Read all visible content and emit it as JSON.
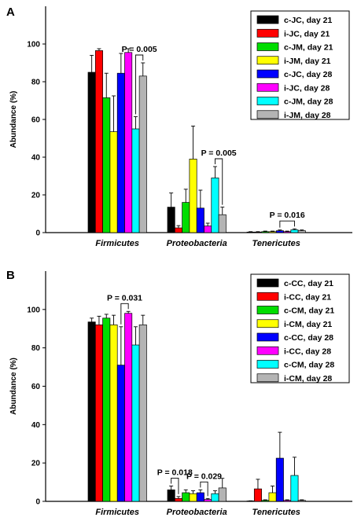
{
  "chart_data": [
    {
      "type": "bar",
      "panel_label": "A",
      "ylabel": "Abundance (%)",
      "ylim": [
        0,
        120
      ],
      "yticks": [
        0,
        20,
        40,
        60,
        80,
        100
      ],
      "categories": [
        "Firmicutes",
        "Proteobacteria",
        "Tenericutes"
      ],
      "legend_position": "top-right",
      "series": [
        {
          "name": "c-JC, day 21",
          "color": "#000000",
          "values": [
            85,
            13.5,
            0.3
          ],
          "errors": [
            9,
            7.5,
            0.2
          ]
        },
        {
          "name": "i-JC, day 21",
          "color": "#ff0000",
          "values": [
            96.5,
            2.5,
            0.3
          ],
          "errors": [
            1,
            1.2,
            0.2
          ]
        },
        {
          "name": "c-JM, day 21",
          "color": "#00dd00",
          "values": [
            71.5,
            16,
            0.5
          ],
          "errors": [
            13,
            7,
            0.3
          ]
        },
        {
          "name": "i-JM, day 21",
          "color": "#ffff00",
          "values": [
            53.5,
            39,
            0.5
          ],
          "errors": [
            19,
            17.5,
            0.3
          ]
        },
        {
          "name": "c-JC, day 28",
          "color": "#0000ff",
          "values": [
            84.5,
            13,
            1
          ],
          "errors": [
            10.5,
            9.5,
            0.4
          ]
        },
        {
          "name": "i-JC, day 28",
          "color": "#ff00ff",
          "values": [
            95.5,
            3.5,
            0.5
          ],
          "errors": [
            2,
            1.5,
            0.3
          ]
        },
        {
          "name": "c-JM, day 28",
          "color": "#00ffff",
          "values": [
            55,
            29,
            1.5
          ],
          "errors": [
            6.5,
            6,
            0.5
          ]
        },
        {
          "name": "i-JM, day 28",
          "color": "#b4b4b4",
          "values": [
            83,
            9.5,
            1
          ],
          "errors": [
            7,
            4,
            0.4
          ]
        }
      ],
      "annotations": [
        {
          "text": "P = 0.005",
          "category": "Firmicutes",
          "between": [
            "c-JM, day 28",
            "i-JM, day 28"
          ]
        },
        {
          "text": "P = 0.005",
          "category": "Proteobacteria",
          "between": [
            "c-JM, day 28",
            "i-JM, day 28"
          ]
        },
        {
          "text": "P = 0.016",
          "category": "Tenericutes",
          "between": [
            "c-JC, day 28",
            "c-JM, day 28"
          ]
        }
      ]
    },
    {
      "type": "bar",
      "panel_label": "B",
      "ylabel": "Abundance (%)",
      "ylim": [
        0,
        120
      ],
      "yticks": [
        0,
        20,
        40,
        60,
        80,
        100
      ],
      "categories": [
        "Firmicutes",
        "Proteobacteria",
        "Tenericutes"
      ],
      "legend_position": "top-right",
      "series": [
        {
          "name": "c-CC, day 21",
          "color": "#000000",
          "values": [
            93.5,
            6,
            0.2
          ],
          "errors": [
            2,
            2,
            0.1
          ]
        },
        {
          "name": "i-CC, day 21",
          "color": "#ff0000",
          "values": [
            92,
            1.5,
            6.5
          ],
          "errors": [
            4.5,
            1,
            5
          ]
        },
        {
          "name": "c-CM, day 21",
          "color": "#00dd00",
          "values": [
            95.5,
            4.5,
            0.5
          ],
          "errors": [
            2,
            1.5,
            0.3
          ]
        },
        {
          "name": "i-CM, day 21",
          "color": "#ffff00",
          "values": [
            92,
            4,
            4.5
          ],
          "errors": [
            5,
            1.5,
            3.5
          ]
        },
        {
          "name": "c-CC, day 28",
          "color": "#0000ff",
          "values": [
            71,
            4.5,
            22.5
          ],
          "errors": [
            20,
            1.5,
            13.5
          ]
        },
        {
          "name": "i-CC, day 28",
          "color": "#ff00ff",
          "values": [
            98,
            1,
            0.5
          ],
          "errors": [
            1,
            0.5,
            0.3
          ]
        },
        {
          "name": "c-CM, day 28",
          "color": "#00ffff",
          "values": [
            81.5,
            4,
            13.5
          ],
          "errors": [
            9.5,
            1.5,
            9.5
          ]
        },
        {
          "name": "i-CM, day 28",
          "color": "#b4b4b4",
          "values": [
            92,
            7,
            0.5
          ],
          "errors": [
            5,
            5,
            0.3
          ]
        }
      ],
      "annotations": [
        {
          "text": "P = 0.031",
          "category": "Firmicutes",
          "between": [
            "c-CC, day 28",
            "i-CC, day 28"
          ]
        },
        {
          "text": "P = 0.018",
          "category": "Proteobacteria",
          "between": [
            "c-CC, day 21",
            "i-CC, day 21"
          ]
        },
        {
          "text": "P = 0.029",
          "category": "Proteobacteria",
          "between": [
            "c-CC, day 28",
            "i-CC, day 28"
          ]
        }
      ]
    }
  ]
}
